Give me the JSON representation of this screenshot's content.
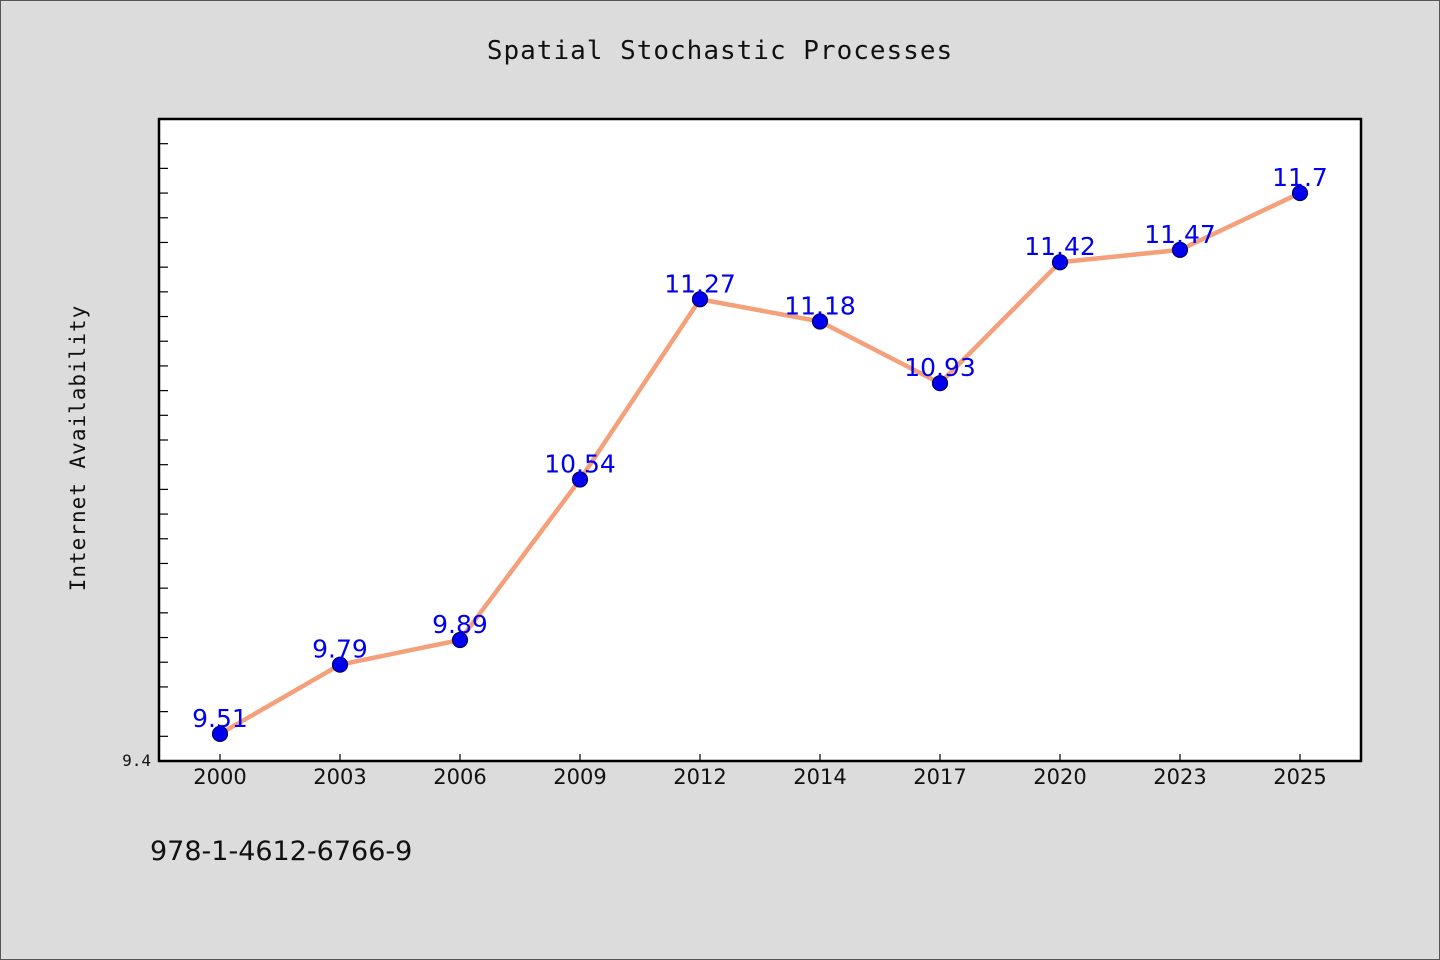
{
  "chart_data": {
    "type": "line",
    "title": "Spatial Stochastic Processes",
    "xlabel": "",
    "ylabel": "Internet Availability",
    "categories": [
      "2000",
      "2003",
      "2006",
      "2009",
      "2012",
      "2014",
      "2017",
      "2020",
      "2023",
      "2025"
    ],
    "values": [
      9.51,
      9.79,
      9.89,
      10.54,
      11.27,
      11.18,
      10.93,
      11.42,
      11.47,
      11.7
    ],
    "data_labels": [
      "9.51",
      "9.79",
      "9.89",
      "10.54",
      "11.27",
      "11.18",
      "10.93",
      "11.42",
      "11.47",
      "11.7"
    ],
    "ylim": [
      9.4,
      12.0
    ],
    "y_tick_labels": [
      {
        "value": 9.4,
        "label": "9.4"
      }
    ],
    "y_minor_tick_step": 0.1,
    "grid": false,
    "legend": "none",
    "colors": {
      "line": "#f4a07a",
      "marker": "#0000ee",
      "marker_edge": "#000066",
      "data_label": "#0000ee"
    }
  },
  "footer": {
    "isbn": "978-1-4612-6766-9"
  }
}
